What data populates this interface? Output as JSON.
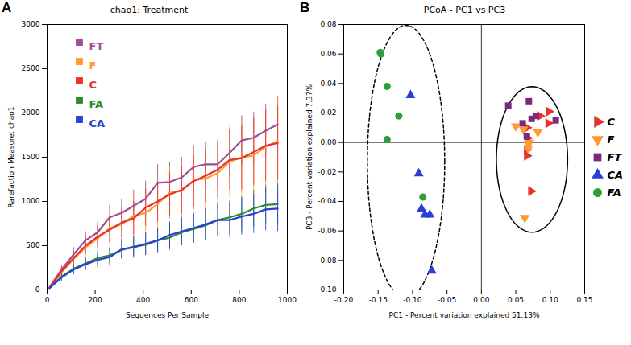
{
  "chart_data": [
    {
      "type": "line",
      "panel_label": "A",
      "title": "chao1: Treatment",
      "x_label": "Sequences Per Sample",
      "y_label": "Rarefaction Measure: chao1",
      "x": [
        10,
        60,
        110,
        160,
        210,
        260,
        310,
        360,
        410,
        460,
        510,
        560,
        610,
        660,
        710,
        760,
        810,
        860,
        910,
        960
      ],
      "xlim": [
        0,
        1000
      ],
      "xticks": [
        0,
        200,
        400,
        600,
        800,
        1000
      ],
      "ylim": [
        0,
        3000
      ],
      "yticks": [
        0,
        500,
        1000,
        1500,
        2000,
        2500,
        3000
      ],
      "legend": "top-left",
      "series": [
        {
          "name": "FT",
          "color": "#9b4f96",
          "values": [
            30,
            230,
            400,
            560,
            650,
            820,
            870,
            950,
            1030,
            1210,
            1220,
            1270,
            1390,
            1420,
            1420,
            1550,
            1690,
            1720,
            1800,
            1870
          ],
          "errors": [
            10,
            50,
            80,
            100,
            120,
            140,
            160,
            180,
            200,
            210,
            220,
            230,
            240,
            250,
            260,
            270,
            280,
            290,
            300,
            320
          ]
        },
        {
          "name": "F",
          "color": "#ff9933",
          "values": [
            25,
            200,
            350,
            480,
            580,
            700,
            740,
            840,
            870,
            970,
            1100,
            1120,
            1240,
            1260,
            1320,
            1450,
            1500,
            1520,
            1620,
            1680
          ],
          "errors": [
            10,
            60,
            90,
            110,
            140,
            170,
            200,
            230,
            260,
            280,
            300,
            320,
            340,
            360,
            380,
            400,
            420,
            440,
            470,
            500
          ]
        },
        {
          "name": "C",
          "color": "#e8312a",
          "values": [
            25,
            210,
            360,
            500,
            600,
            680,
            760,
            810,
            930,
            1000,
            1080,
            1130,
            1230,
            1290,
            1360,
            1470,
            1490,
            1560,
            1630,
            1660
          ],
          "errors": [
            10,
            50,
            80,
            100,
            120,
            150,
            170,
            190,
            210,
            230,
            250,
            270,
            290,
            300,
            320,
            340,
            360,
            380,
            400,
            420
          ]
        },
        {
          "name": "FA",
          "color": "#2e8b2e",
          "values": [
            20,
            150,
            240,
            300,
            360,
            390,
            450,
            490,
            510,
            560,
            590,
            650,
            690,
            730,
            790,
            820,
            860,
            920,
            960,
            970
          ],
          "errors": [
            5,
            30,
            50,
            60,
            80,
            90,
            100,
            110,
            120,
            130,
            140,
            150,
            160,
            170,
            180,
            190,
            200,
            210,
            220,
            230
          ]
        },
        {
          "name": "CA",
          "color": "#2a3fd6",
          "values": [
            20,
            140,
            230,
            290,
            340,
            370,
            460,
            480,
            520,
            560,
            620,
            660,
            700,
            740,
            790,
            790,
            830,
            860,
            910,
            920
          ],
          "errors": [
            5,
            40,
            60,
            70,
            80,
            100,
            110,
            120,
            130,
            140,
            150,
            160,
            170,
            180,
            190,
            200,
            210,
            220,
            240,
            260
          ]
        }
      ]
    },
    {
      "type": "scatter",
      "panel_label": "B",
      "title": "PCoA - PC1 vs PC3",
      "x_label": "PC1 - Percent variation explained 51.13%",
      "y_label": "PC3 - Percent variation explained 7.37%",
      "xlim": [
        -0.2,
        0.15
      ],
      "xticks": [
        {
          "value": -0.2,
          "label": "-0.20"
        },
        {
          "value": -0.15,
          "label": "-0.15"
        },
        {
          "value": -0.1,
          "label": "-0.10"
        },
        {
          "value": -0.05,
          "label": "-0.05"
        },
        {
          "value": 0,
          "label": "0.00"
        },
        {
          "value": 0.05,
          "label": "0.05"
        },
        {
          "value": 0.1,
          "label": "0.10"
        },
        {
          "value": 0.15,
          "label": "0.15"
        }
      ],
      "ylim": [
        -0.1,
        0.08
      ],
      "yticks": [
        {
          "value": -0.1,
          "label": "-0.10"
        },
        {
          "value": -0.08,
          "label": "-0.08"
        },
        {
          "value": -0.06,
          "label": "-0.06"
        },
        {
          "value": -0.04,
          "label": "-0.04"
        },
        {
          "value": -0.02,
          "label": "-0.02"
        },
        {
          "value": 0,
          "label": "0.00"
        },
        {
          "value": 0.02,
          "label": "0.02"
        },
        {
          "value": 0.04,
          "label": "0.04"
        },
        {
          "value": 0.06,
          "label": "0.06"
        },
        {
          "value": 0.08,
          "label": "0.08"
        }
      ],
      "legend": "right",
      "series": [
        {
          "name": "C",
          "color": "#e8312a",
          "marker": "triangle-right",
          "x": [
            0.098,
            0.085,
            0.097,
            0.066,
            0.067,
            0.066,
            0.066,
            0.072
          ],
          "y": [
            0.021,
            0.018,
            0.013,
            0.01,
            0.003,
            -0.005,
            -0.009,
            -0.033
          ]
        },
        {
          "name": "F",
          "color": "#ff9933",
          "marker": "triangle-down",
          "x": [
            0.05,
            0.061,
            0.082,
            0.07,
            0.068,
            0.068,
            0.063
          ],
          "y": [
            0.011,
            0.009,
            0.007,
            0.0,
            -0.001,
            -0.004,
            -0.051
          ]
        },
        {
          "name": "FT",
          "color": "#7a2a7a",
          "marker": "square",
          "x": [
            0.039,
            0.069,
            0.06,
            0.073,
            0.108,
            0.066,
            0.079
          ],
          "y": [
            0.025,
            0.028,
            0.013,
            0.016,
            0.015,
            0.004,
            0.018
          ]
        },
        {
          "name": "CA",
          "color": "#2a3fd6",
          "marker": "triangle",
          "x": [
            -0.103,
            -0.091,
            -0.087,
            -0.082,
            -0.075,
            -0.072
          ],
          "y": [
            0.032,
            -0.021,
            -0.045,
            -0.049,
            -0.049,
            -0.087
          ]
        },
        {
          "name": "FA",
          "color": "#2e9e3a",
          "marker": "circle",
          "x": [
            -0.147,
            -0.146,
            -0.137,
            -0.12,
            -0.137,
            -0.085
          ],
          "y": [
            0.061,
            0.06,
            0.038,
            0.018,
            0.002,
            -0.037
          ]
        }
      ]
    }
  ]
}
